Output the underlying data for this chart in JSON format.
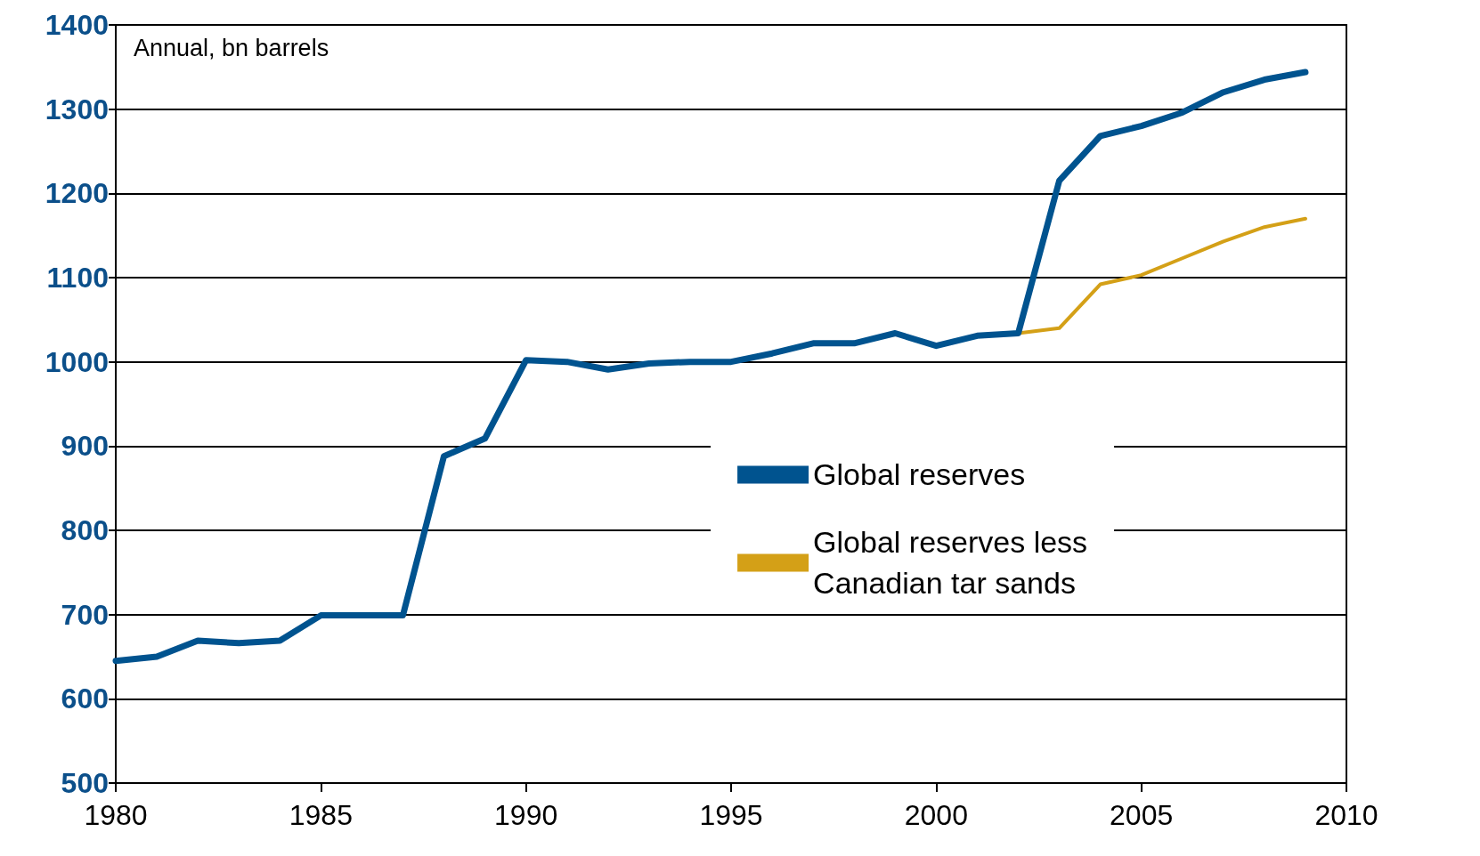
{
  "chart_data": {
    "type": "line",
    "annotations": [
      "Annual, bn barrels"
    ],
    "xlim": [
      1980,
      2010
    ],
    "xticks": [
      1980,
      1985,
      1990,
      1995,
      2000,
      2005,
      2010
    ],
    "ylim": [
      500,
      1400
    ],
    "yticks": [
      500,
      600,
      700,
      800,
      900,
      1000,
      1100,
      1200,
      1300,
      1400
    ],
    "grid": "y",
    "legend": "center",
    "marker": "none",
    "line_style": "solid",
    "series": [
      {
        "name": "Global reserves",
        "color": "#00538f",
        "x": [
          1980,
          1981,
          1982,
          1983,
          1984,
          1985,
          1986,
          1987,
          1988,
          1989,
          1990,
          1991,
          1992,
          1993,
          1994,
          1995,
          1996,
          1997,
          1998,
          1999,
          2000,
          2001,
          2002,
          2003,
          2004,
          2005,
          2006,
          2007,
          2008,
          2009
        ],
        "values": [
          645,
          650,
          669,
          666,
          669,
          699,
          699,
          699,
          888,
          909,
          1002,
          1000,
          991,
          998,
          1000,
          1000,
          1010,
          1022,
          1022,
          1034,
          1019,
          1031,
          1034,
          1215,
          1268,
          1280,
          1296,
          1320,
          1335,
          1344
        ]
      },
      {
        "name": "Global reserves less\nCanadian tar sands",
        "color": "#d4a017",
        "x": [
          2002,
          2003,
          2004,
          2005,
          2006,
          2007,
          2008,
          2009
        ],
        "values": [
          1034,
          1040,
          1092,
          1103,
          1123,
          1143,
          1160,
          1170
        ]
      }
    ]
  }
}
